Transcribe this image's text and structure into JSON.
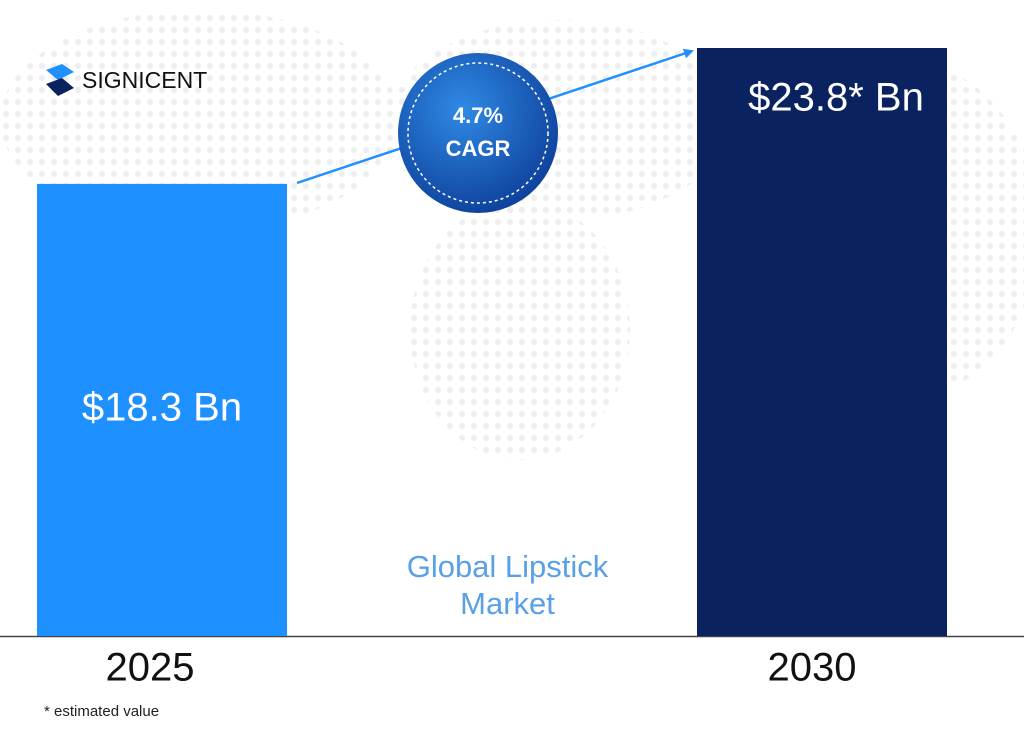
{
  "brand": "SIGNICENT",
  "footnote": "* estimated value",
  "chart_data": {
    "type": "bar",
    "title": "Global Lipstick Market",
    "categories": [
      "2025",
      "2030"
    ],
    "values": [
      18.3,
      23.8
    ],
    "value_labels": [
      "$18.3 Bn",
      "$23.8* Bn"
    ],
    "colors": [
      "#1e90ff",
      "#0b2260"
    ],
    "annotations": [
      "4.7%",
      "CAGR"
    ]
  }
}
